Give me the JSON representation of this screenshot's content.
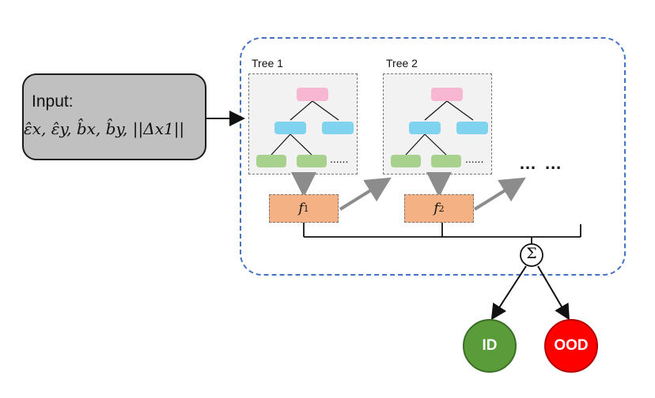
{
  "input": {
    "title": "Input:",
    "formula": "ε̂x, ε̂y, b̂x, b̂y, ||Δx1||"
  },
  "trees": [
    {
      "label": "Tree 1",
      "output": "f",
      "output_sub": "1"
    },
    {
      "label": "Tree 2",
      "output": "f",
      "output_sub": "2"
    }
  ],
  "more_leaves": "......",
  "more_trees": "… …",
  "sum_symbol": "Σ",
  "outputs": {
    "id": "ID",
    "ood": "OOD"
  },
  "colors": {
    "root_node": "#f7b6d2",
    "mid_node": "#7fd3ee",
    "leaf_node": "#a9d18e",
    "ensemble_border": "#4472c4",
    "f_box": "#f4b183",
    "id": "#5a9c3a",
    "ood": "#ff0000"
  }
}
